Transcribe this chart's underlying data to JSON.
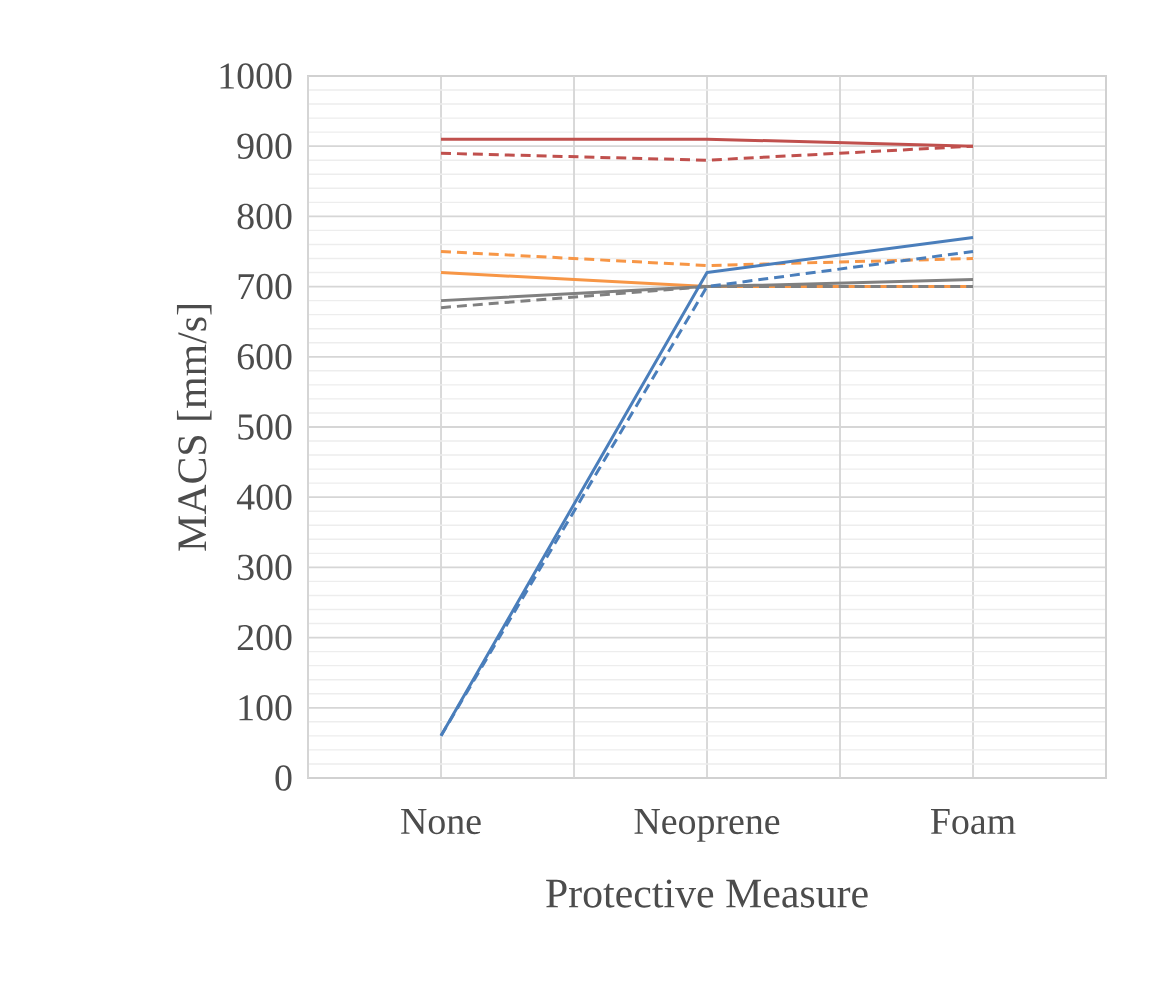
{
  "chart_data": {
    "type": "line",
    "xlabel": "Protective Measure",
    "ylabel": "MACS [mm/s]",
    "categories": [
      "None",
      "Neoprene",
      "Foam"
    ],
    "series": [
      {
        "color": "#c0504d",
        "line_style": "solid",
        "values": [
          910,
          910,
          900
        ]
      },
      {
        "color": "#c0504d",
        "line_style": "dashed",
        "values": [
          890,
          880,
          900
        ]
      },
      {
        "color": "#f79646",
        "line_style": "solid",
        "values": [
          720,
          700,
          700
        ]
      },
      {
        "color": "#f79646",
        "line_style": "dashed",
        "values": [
          750,
          730,
          740
        ]
      },
      {
        "color": "#808080",
        "line_style": "solid",
        "values": [
          680,
          700,
          710
        ]
      },
      {
        "color": "#808080",
        "line_style": "dashed",
        "values": [
          670,
          700,
          700
        ]
      },
      {
        "color": "#4a7ebb",
        "line_style": "solid",
        "values": [
          60,
          720,
          770
        ]
      },
      {
        "color": "#4a7ebb",
        "line_style": "dashed",
        "values": [
          60,
          700,
          750
        ]
      }
    ],
    "ylim": [
      0,
      1000
    ],
    "yticks": [
      0,
      100,
      200,
      300,
      400,
      500,
      600,
      700,
      800,
      900,
      1000
    ],
    "grid": true,
    "marker": "none"
  }
}
